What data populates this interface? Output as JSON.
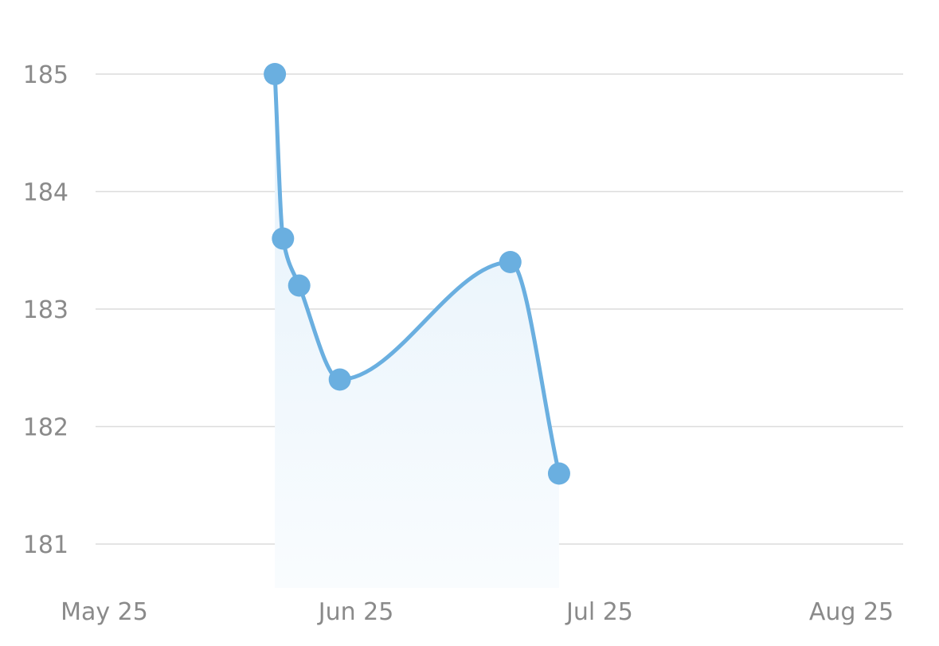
{
  "chart_data": {
    "type": "line",
    "title": "",
    "xlabel": "",
    "ylabel": "",
    "x_ticks": [
      {
        "label": "May 25",
        "date": "2023-05-25"
      },
      {
        "label": "Jun 25",
        "date": "2023-06-25"
      },
      {
        "label": "Jul 25",
        "date": "2023-07-25"
      },
      {
        "label": "Aug 25",
        "date": "2023-08-25"
      }
    ],
    "y_ticks": [
      181,
      182,
      183,
      184,
      185
    ],
    "ylim": [
      180.63,
      185.32
    ],
    "xlim": [
      "2023-05-25",
      "2023-08-25"
    ],
    "grid": "horizontal",
    "smooth": true,
    "area_fill": true,
    "colors": {
      "line": "#6aafe0",
      "marker": "#6aafe0",
      "fill_top": "#e4f1fb",
      "fill_bottom": "#f9fcfe"
    },
    "series": [
      {
        "points": [
          {
            "x": "2023-06-15",
            "y": 185.0
          },
          {
            "x": "2023-06-16",
            "y": 183.6
          },
          {
            "x": "2023-06-18",
            "y": 183.2
          },
          {
            "x": "2023-06-23",
            "y": 182.4
          },
          {
            "x": "2023-07-14",
            "y": 183.4
          },
          {
            "x": "2023-07-20",
            "y": 181.6
          }
        ]
      }
    ]
  }
}
